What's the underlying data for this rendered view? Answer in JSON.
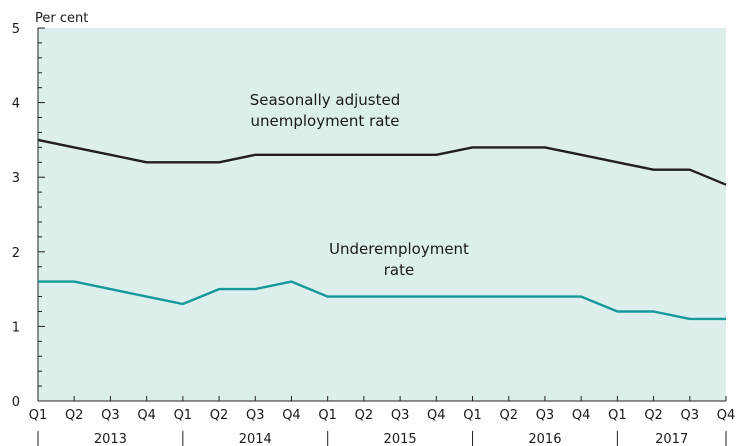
{
  "chart_data": {
    "type": "line",
    "ylabel": "Per cent",
    "ylim": [
      0,
      5
    ],
    "y_ticks": [
      "0",
      "1",
      "2",
      "3",
      "4",
      "5"
    ],
    "x": [
      "Q1",
      "Q2",
      "Q3",
      "Q4",
      "Q1",
      "Q2",
      "Q3",
      "Q4",
      "Q1",
      "Q2",
      "Q3",
      "Q4",
      "Q1",
      "Q2",
      "Q3",
      "Q4",
      "Q1",
      "Q2",
      "Q3",
      "Q4"
    ],
    "years": [
      "2013",
      "2014",
      "2015",
      "2016",
      "2017"
    ],
    "grid": false,
    "plot_background": "#dcefec",
    "series": [
      {
        "name": "Seasonally adjusted unemployment rate",
        "label_lines": [
          "Seasonally adjusted",
          "unemployment rate"
        ],
        "color": "#231f20",
        "values": [
          3.5,
          3.4,
          3.3,
          3.2,
          3.2,
          3.2,
          3.3,
          3.3,
          3.3,
          3.3,
          3.3,
          3.3,
          3.4,
          3.4,
          3.4,
          3.3,
          3.2,
          3.1,
          3.1,
          2.9
        ]
      },
      {
        "name": "Underemployment rate",
        "label_lines": [
          "Underemployment",
          "rate"
        ],
        "color": "#17999a",
        "values": [
          1.6,
          1.6,
          1.5,
          1.4,
          1.3,
          1.5,
          1.5,
          1.6,
          1.4,
          1.4,
          1.4,
          1.4,
          1.4,
          1.4,
          1.4,
          1.4,
          1.2,
          1.2,
          1.1,
          1.1
        ]
      }
    ]
  }
}
